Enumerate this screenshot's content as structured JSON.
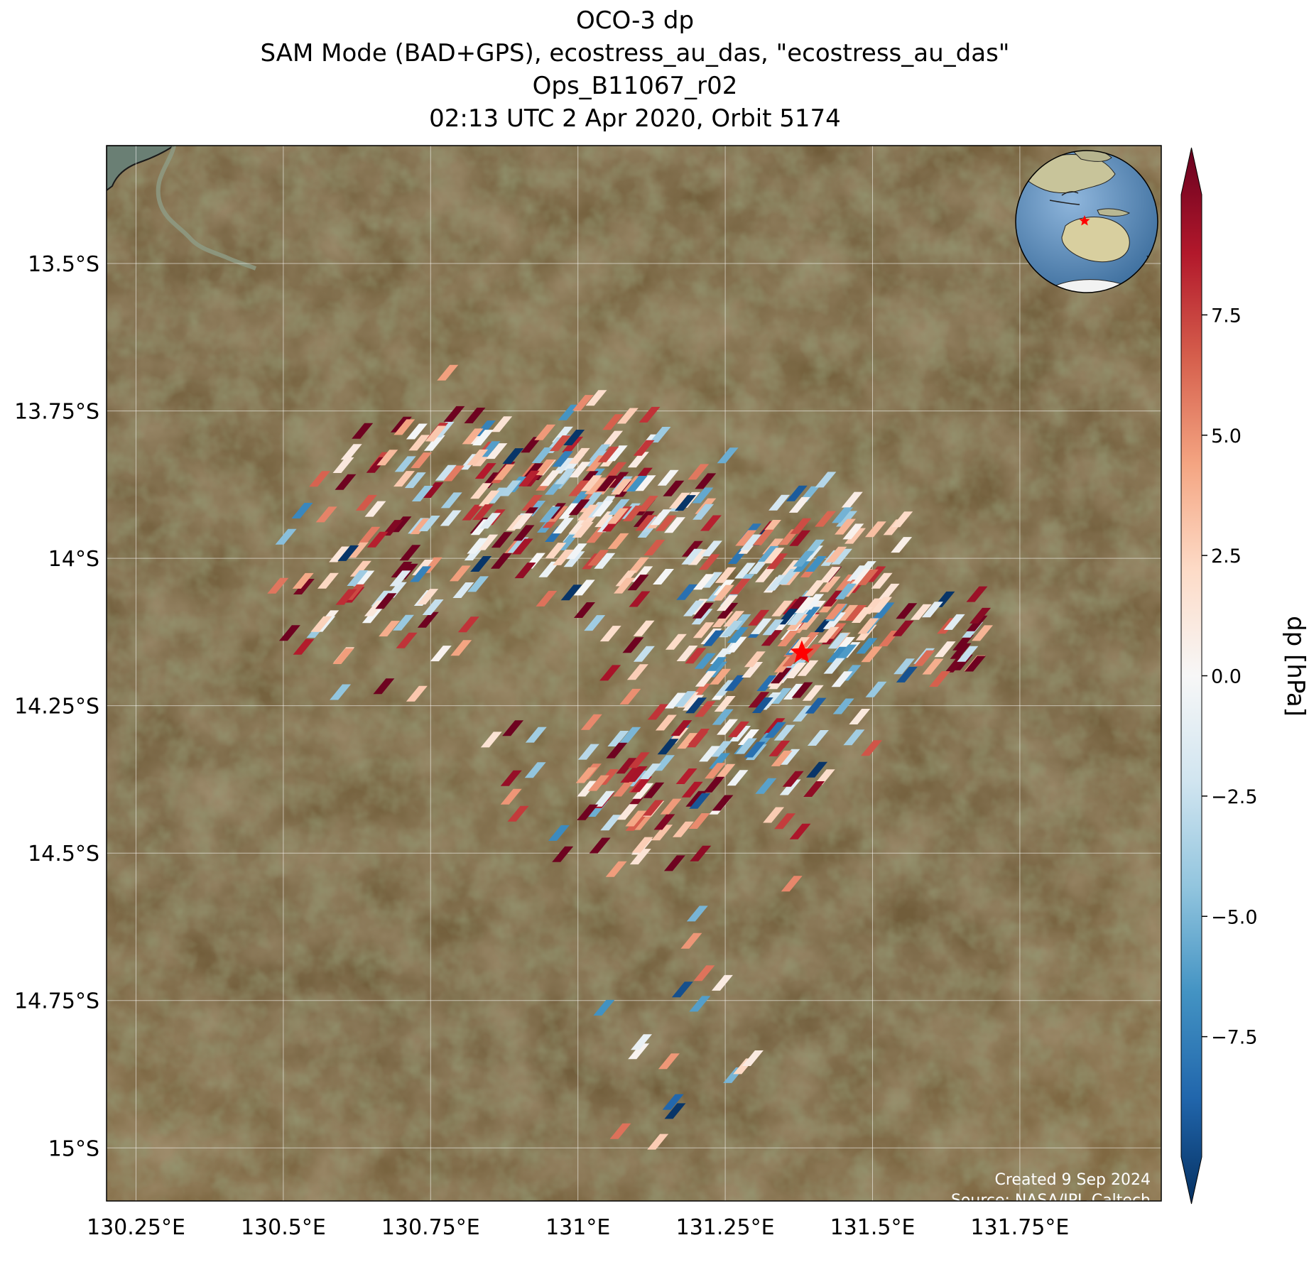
{
  "title": {
    "lines": [
      "OCO-3 dp",
      "SAM Mode (BAD+GPS), ecostress_au_das, \"ecostress_au_das\"",
      "Ops_B11067_r02",
      "02:13 UTC 2 Apr 2020, Orbit 5174"
    ]
  },
  "map": {
    "lon_range": [
      130.2,
      131.99
    ],
    "lat_range": [
      -15.09,
      -13.3
    ],
    "lon_ticks": [
      {
        "value": 130.25,
        "label": "130.25°E"
      },
      {
        "value": 130.5,
        "label": "130.5°E"
      },
      {
        "value": 130.75,
        "label": "130.75°E"
      },
      {
        "value": 131.0,
        "label": "131°E"
      },
      {
        "value": 131.25,
        "label": "131.25°E"
      },
      {
        "value": 131.5,
        "label": "131.5°E"
      },
      {
        "value": 131.75,
        "label": "131.75°E"
      }
    ],
    "lat_ticks": [
      {
        "value": -13.5,
        "label": "13.5°S"
      },
      {
        "value": -13.75,
        "label": "13.75°S"
      },
      {
        "value": -14.0,
        "label": "14°S"
      },
      {
        "value": -14.25,
        "label": "14.25°S"
      },
      {
        "value": -14.5,
        "label": "14.5°S"
      },
      {
        "value": -14.75,
        "label": "14.75°S"
      },
      {
        "value": -15.0,
        "label": "15°S"
      }
    ],
    "grid": true,
    "background": "satellite imagery",
    "target": {
      "lon": 131.38,
      "lat": -14.16,
      "marker": "red-star-icon",
      "color": "#ff0000"
    },
    "footer": {
      "created": "Created 9 Sep 2024",
      "source": "Source: NASA/JPL-Caltech"
    },
    "inset": {
      "type": "globe",
      "region": "Australia",
      "marker": "red-star-icon"
    }
  },
  "colorbar": {
    "label": "dp [hPa]",
    "range": [
      -10,
      10
    ],
    "extend": "both",
    "cmap": "RdBu_r",
    "ticks": [
      {
        "value": 7.5,
        "label": "7.5"
      },
      {
        "value": 5.0,
        "label": "5.0"
      },
      {
        "value": 2.5,
        "label": "2.5"
      },
      {
        "value": 0.0,
        "label": "0.0"
      },
      {
        "value": -2.5,
        "label": "−2.5"
      },
      {
        "value": -5.0,
        "label": "−5.0"
      },
      {
        "value": -7.5,
        "label": "−7.5"
      }
    ],
    "stops": [
      "#053061",
      "#2166ac",
      "#4393c3",
      "#92c5de",
      "#d1e5f0",
      "#f7f7f7",
      "#fddbc7",
      "#f4a582",
      "#d6604d",
      "#b2182b",
      "#67001f"
    ]
  },
  "chart_data": {
    "type": "map-scatter",
    "variable": "dp",
    "units": "hPa",
    "clusters": [
      {
        "lon": 130.88,
        "lat": -13.86,
        "sx": 0.16,
        "sy": 0.07,
        "n": 120,
        "bias": 3.0
      },
      {
        "lon": 131.05,
        "lat": -13.93,
        "sx": 0.1,
        "sy": 0.06,
        "n": 90,
        "bias": 2.0
      },
      {
        "lon": 131.26,
        "lat": -14.12,
        "sx": 0.1,
        "sy": 0.12,
        "n": 150,
        "bias": 0.0
      },
      {
        "lon": 131.42,
        "lat": -14.08,
        "sx": 0.08,
        "sy": 0.1,
        "n": 110,
        "bias": 0.5
      },
      {
        "lon": 131.65,
        "lat": -14.11,
        "sx": 0.025,
        "sy": 0.05,
        "n": 20,
        "bias": 4.0
      },
      {
        "lon": 131.12,
        "lat": -14.4,
        "sx": 0.12,
        "sy": 0.07,
        "n": 80,
        "bias": 2.5
      },
      {
        "lon": 130.65,
        "lat": -14.05,
        "sx": 0.09,
        "sy": 0.08,
        "n": 55,
        "bias": 2.0
      },
      {
        "lon": 131.18,
        "lat": -14.8,
        "sx": 0.07,
        "sy": 0.09,
        "n": 16,
        "bias": 0.0
      }
    ]
  }
}
